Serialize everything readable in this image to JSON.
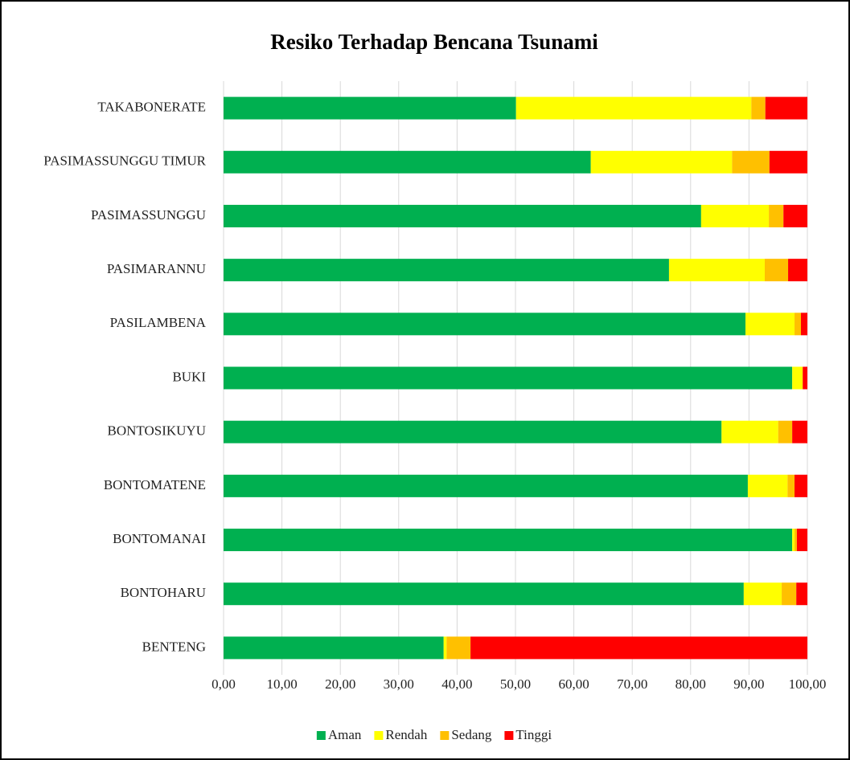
{
  "chart_data": {
    "type": "stacked-bar-horizontal",
    "title": "Resiko Terhadap Bencana Tsunami",
    "categories": [
      "TAKABONERATE",
      "PASIMASSUNGGU TIMUR",
      "PASIMASSUNGGU",
      "PASIMARANNU",
      "PASILAMBENA",
      "BUKI",
      "BONTOSIKUYU",
      "BONTOMATENE",
      "BONTOMANAI",
      "BONTOHARU",
      "BENTENG"
    ],
    "series": [
      {
        "name": "Aman",
        "color": "#00b050",
        "values": [
          50.1,
          62.9,
          81.8,
          76.3,
          89.4,
          97.4,
          85.3,
          89.8,
          97.4,
          89.1,
          37.7
        ]
      },
      {
        "name": "Rendah",
        "color": "#ffff00",
        "values": [
          40.3,
          24.2,
          11.6,
          16.4,
          8.4,
          1.8,
          9.7,
          6.8,
          0.4,
          6.5,
          0.5
        ]
      },
      {
        "name": "Sedang",
        "color": "#ffc000",
        "values": [
          2.4,
          6.4,
          2.5,
          4.0,
          1.1,
          0,
          2.4,
          1.2,
          0.4,
          2.5,
          4.1
        ]
      },
      {
        "name": "Tinggi",
        "color": "#ff0000",
        "values": [
          7.2,
          6.5,
          4.1,
          3.3,
          1.1,
          0.8,
          2.6,
          2.2,
          1.8,
          1.9,
          57.7
        ]
      }
    ],
    "xlim": [
      0,
      100
    ],
    "xticks": [
      {
        "value": 0,
        "label": "0,00"
      },
      {
        "value": 10,
        "label": "10,00"
      },
      {
        "value": 20,
        "label": "20,00"
      },
      {
        "value": 30,
        "label": "30,00"
      },
      {
        "value": 40,
        "label": "40,00"
      },
      {
        "value": 50,
        "label": "50,00"
      },
      {
        "value": 60,
        "label": "60,00"
      },
      {
        "value": 70,
        "label": "70,00"
      },
      {
        "value": 80,
        "label": "80,00"
      },
      {
        "value": 90,
        "label": "90,00"
      },
      {
        "value": 100,
        "label": "100,00"
      }
    ],
    "grid": true,
    "legend": "bottom"
  }
}
